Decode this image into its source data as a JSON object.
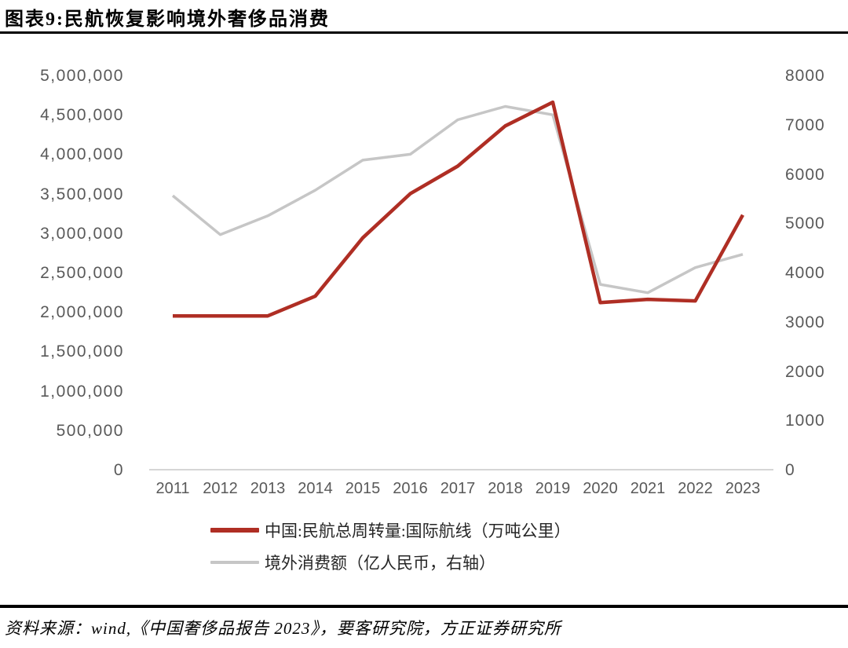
{
  "page": {
    "title": "图表9:民航恢复影响境外奢侈品消费",
    "source": "资料来源：wind,《中国奢侈品报告 2023》，要客研究院，方正证券研究所"
  },
  "colors": {
    "series_red": "#AF2E24",
    "series_gray": "#C6C6C6",
    "axis_line": "#D6D6D6",
    "tick_text": "#595959"
  },
  "chart_data": {
    "type": "line",
    "title": "图表9:民航恢复影响境外奢侈品消费",
    "x": [
      "2011",
      "2012",
      "2013",
      "2014",
      "2015",
      "2016",
      "2017",
      "2018",
      "2019",
      "2020",
      "2021",
      "2022",
      "2023"
    ],
    "series": [
      {
        "name": "中国:民航总周转量:国际航线（万吨公里）",
        "axis": "left",
        "color": "#AF2E24",
        "values": [
          1950000,
          1950000,
          1950000,
          2200000,
          2940000,
          3500000,
          3850000,
          4360000,
          4660000,
          2120000,
          2160000,
          2140000,
          3230000
        ]
      },
      {
        "name": "境外消费额（亿人民币，右轴）",
        "axis": "right",
        "color": "#C6C6C6",
        "values": [
          5560,
          4770,
          5150,
          5670,
          6280,
          6400,
          7100,
          7370,
          7200,
          3760,
          3590,
          4100,
          4370
        ]
      }
    ],
    "left_axis": {
      "min": 0,
      "max": 5000000,
      "step": 500000,
      "tick_labels": [
        "5,000,000",
        "4,500,000",
        "4,000,000",
        "3,500,000",
        "3,000,000",
        "2,500,000",
        "2,000,000",
        "1,500,000",
        "1,000,000",
        "500,000",
        "0"
      ]
    },
    "right_axis": {
      "min": 0,
      "max": 8000,
      "step": 1000,
      "tick_labels": [
        "8000",
        "7000",
        "6000",
        "5000",
        "4000",
        "3000",
        "2000",
        "1000",
        "0"
      ]
    },
    "grid": false,
    "legend_position": "bottom-left"
  }
}
